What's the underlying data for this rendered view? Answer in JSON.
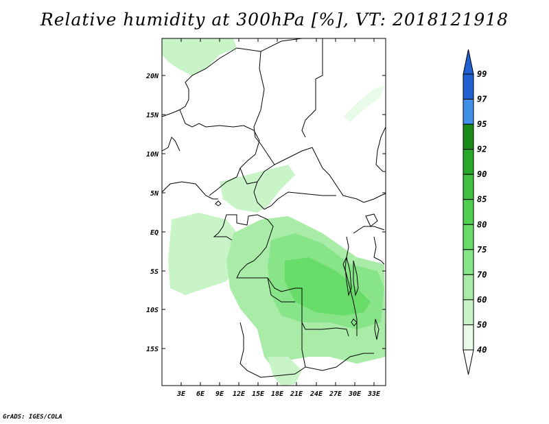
{
  "title": "Relative humidity at 300hPa [%], VT: 2018121918",
  "credit": "GrADS: IGES/COLA",
  "map": {
    "lat_ticks": [
      "20N",
      "15N",
      "10N",
      "5N",
      "EQ",
      "5S",
      "10S",
      "15S"
    ],
    "lon_ticks": [
      "3E",
      "6E",
      "9E",
      "12E",
      "15E",
      "18E",
      "21E",
      "24E",
      "27E",
      "30E",
      "33E"
    ],
    "colorbar": {
      "levels": [
        "99",
        "97",
        "95",
        "92",
        "90",
        "85",
        "80",
        "75",
        "70",
        "60",
        "50",
        "40"
      ],
      "colors": [
        "#2060d0",
        "#4090e8",
        "#1a8a1a",
        "#28a828",
        "#40c040",
        "#50d050",
        "#68dc68",
        "#88e488",
        "#a8eca8",
        "#c8f4c8",
        "#e8fae8"
      ]
    }
  }
}
